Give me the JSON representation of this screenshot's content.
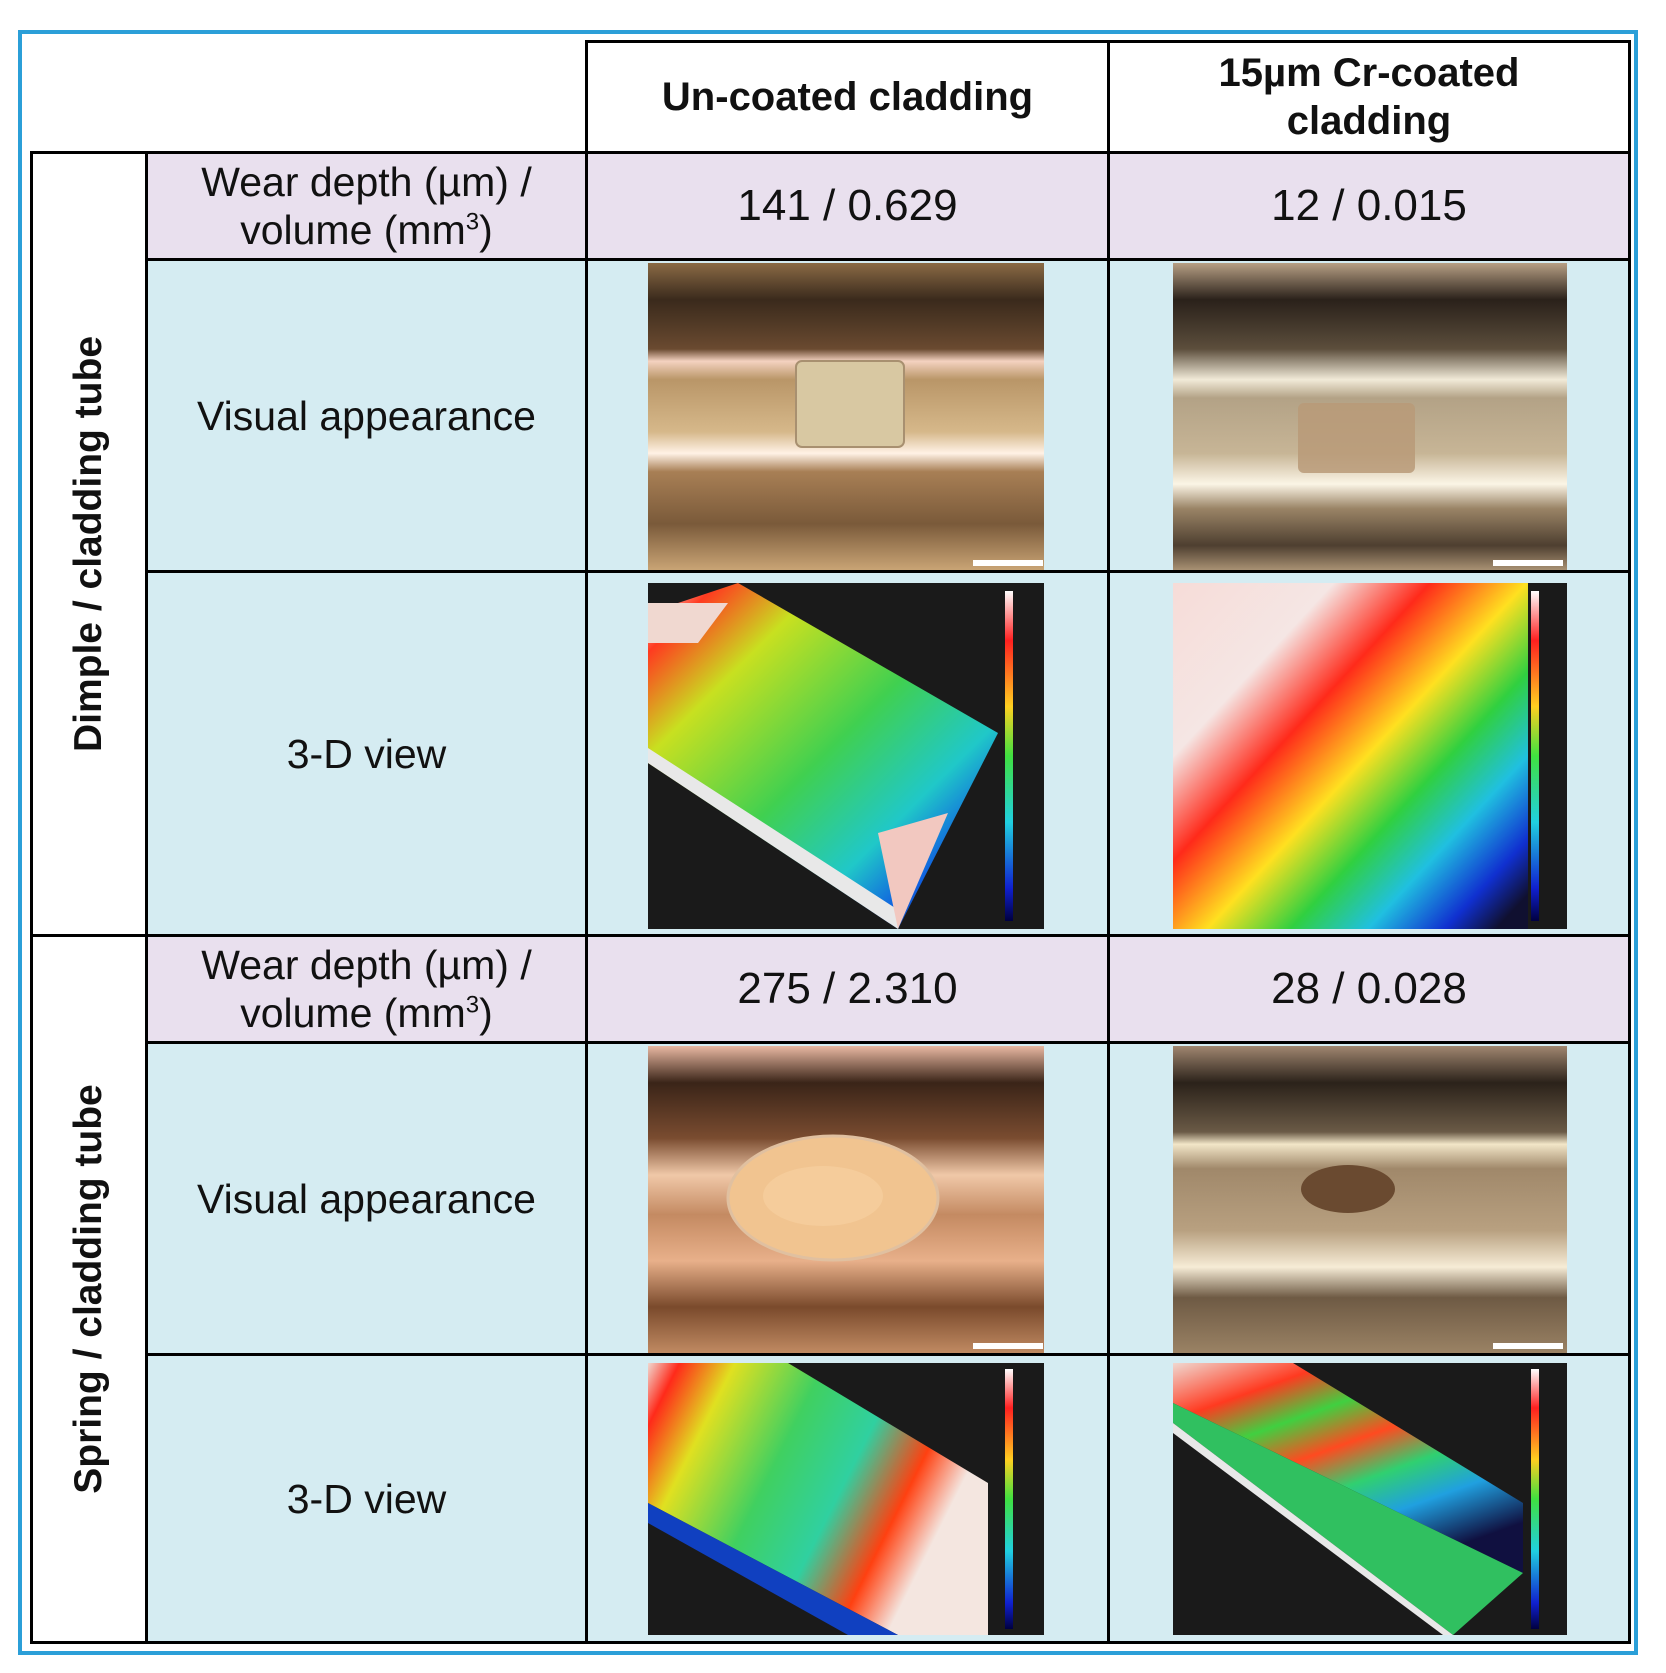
{
  "columns": {
    "uncoated": "Un-coated cladding",
    "coated_line1": "15µm Cr-coated",
    "coated_line2": "cladding"
  },
  "groups": [
    {
      "label": "Dimple / cladding tube",
      "wear_label_1": "Wear depth (µm) /",
      "wear_label_2": "volume (mm",
      "wear_label_sup": "3",
      "wear_label_close": ")",
      "visual_label": "Visual appearance",
      "view3d_label": "3-D view",
      "uncoated_value": "141 / 0.629",
      "coated_value": "12 / 0.015"
    },
    {
      "label": "Spring / cladding tube",
      "wear_label_1": "Wear depth (µm) /",
      "wear_label_2": "volume (mm",
      "wear_label_sup": "3",
      "wear_label_close": ")",
      "visual_label": "Visual appearance",
      "view3d_label": "3-D view",
      "uncoated_value": "275 / 2.310",
      "coated_value": "28 / 0.028"
    }
  ],
  "colors": {
    "frame": "#2b9fd8",
    "wear_row_bg": "#e9e0ee",
    "image_row_bg": "#d5ecf2"
  }
}
